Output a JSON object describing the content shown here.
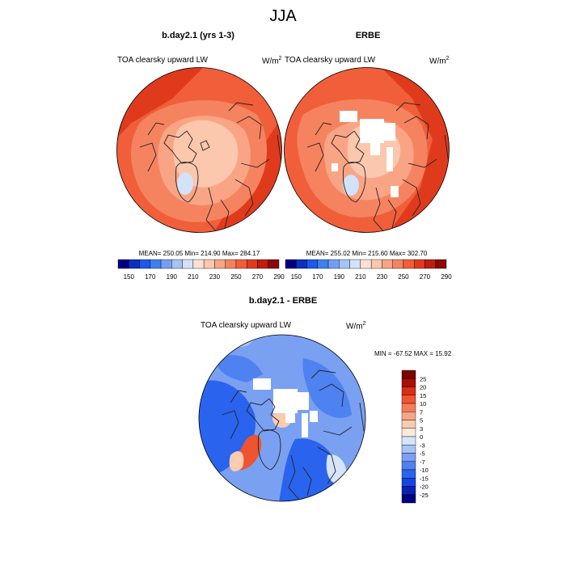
{
  "figure": {
    "title": "JJA",
    "unit_base": "W/m",
    "unit_exp": "2"
  },
  "colors": {
    "abs_scale": [
      "#00007f",
      "#0c2fc0",
      "#1d59e6",
      "#3f7fee",
      "#769ff0",
      "#a6c3f3",
      "#d2e2f9",
      "#fbe1d3",
      "#fbc7ad",
      "#f9a585",
      "#f6835f",
      "#f05f3a",
      "#e03a1d",
      "#bd1e0d",
      "#8a0806"
    ],
    "diff_scale": [
      "#00007f",
      "#0b20b5",
      "#1544e0",
      "#2a63ee",
      "#4e82f0",
      "#7aa0f2",
      "#a8c4f5",
      "#d6e5fb",
      "#fbe9df",
      "#f9cbb0",
      "#f7a684",
      "#f47d58",
      "#ee5430",
      "#d92d14",
      "#a90f06",
      "#7a0303"
    ],
    "coastline": "#222222"
  },
  "panels": [
    {
      "id": "model",
      "title": "b.day2.1 (yrs 1-3)",
      "variable": "TOA clearsky upward LW",
      "stats": "MEAN= 250.05  Min= 214.90  Max= 284.17",
      "colorbar_ticks": [
        "150",
        "170",
        "190",
        "210",
        "230",
        "250",
        "270",
        "290"
      ]
    },
    {
      "id": "obs",
      "title": "ERBE",
      "variable": "TOA clearsky upward LW",
      "stats": "MEAN= 255.02  Min= 215.60  Max= 302.70",
      "colorbar_ticks": [
        "150",
        "170",
        "190",
        "210",
        "230",
        "250",
        "270",
        "290"
      ]
    },
    {
      "id": "diff",
      "title": "b.day2.1 - ERBE",
      "variable": "TOA clearsky upward LW",
      "stats": "MIN = -67.52 MAX =  15.92",
      "colorbar_ticks": [
        "25",
        "20",
        "15",
        "10",
        "7",
        "5",
        "3",
        "0",
        "-3",
        "-5",
        "-7",
        "-10",
        "-15",
        "-20",
        "-25"
      ]
    }
  ]
}
